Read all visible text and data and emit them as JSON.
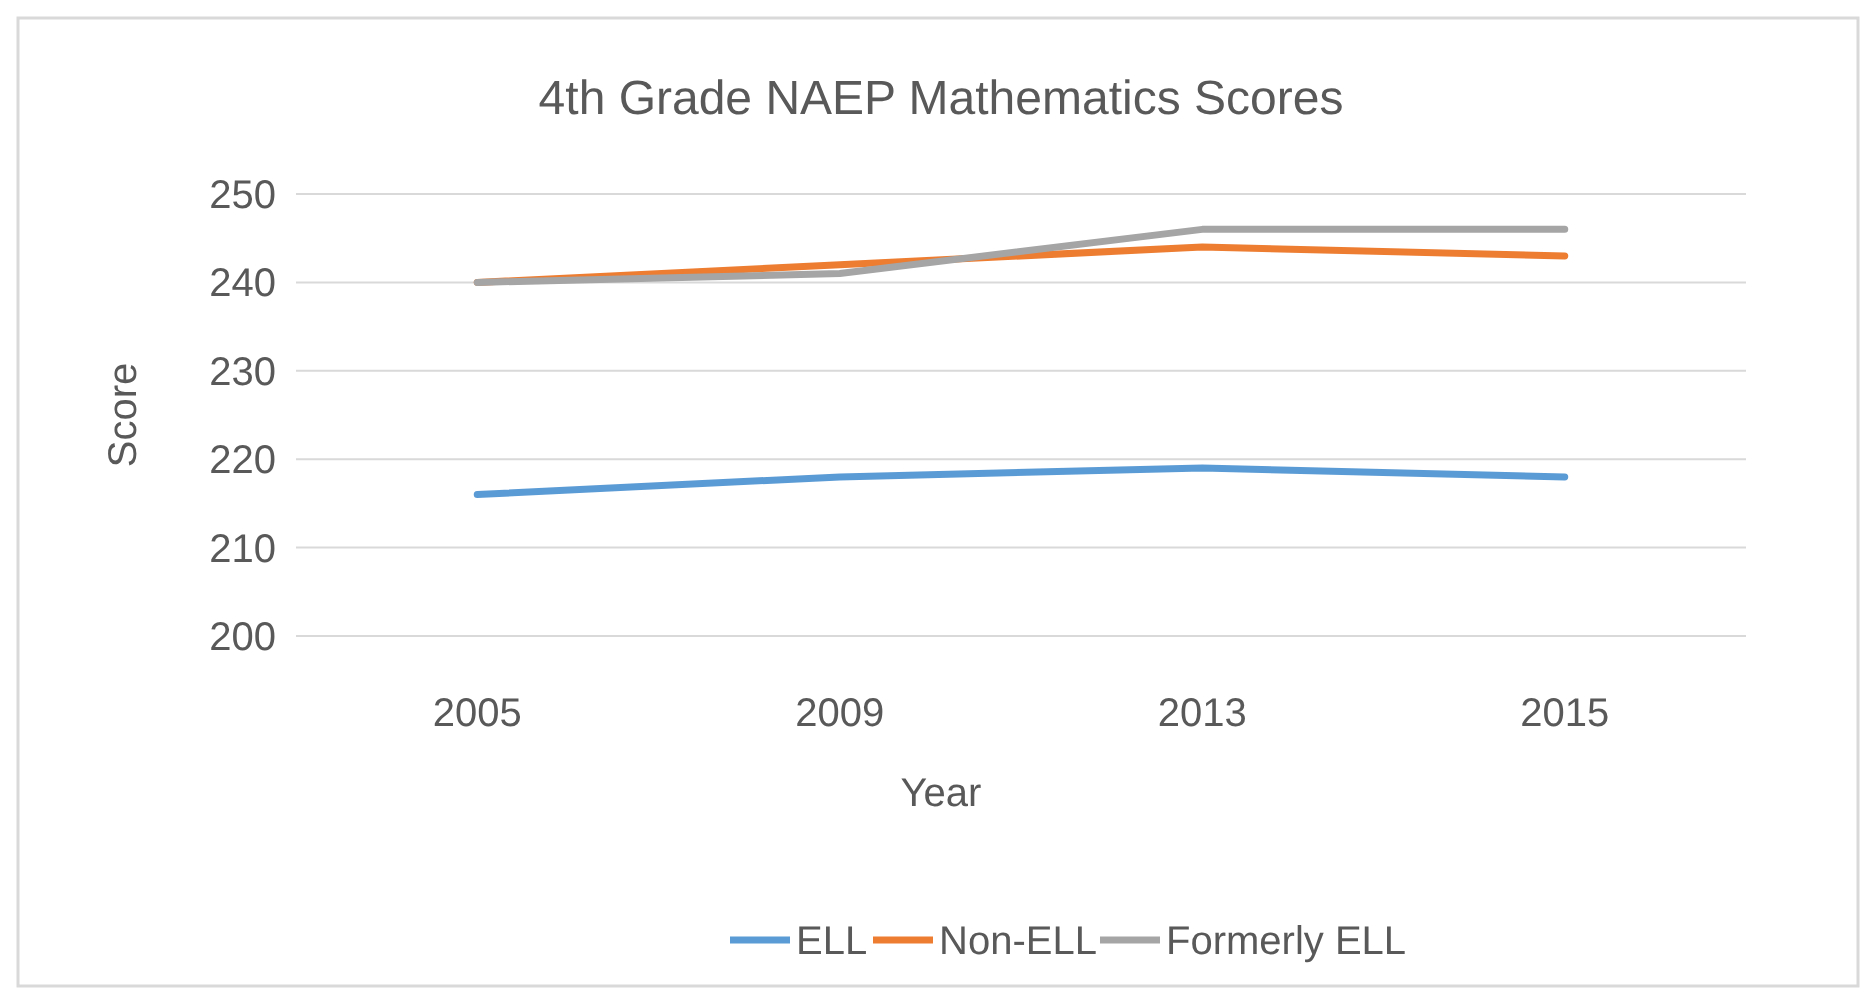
{
  "chart_data": {
    "type": "line",
    "title": "4th Grade NAEP Mathematics Scores",
    "xlabel": "Year",
    "ylabel": "Score",
    "categories": [
      "2005",
      "2009",
      "2013",
      "2015"
    ],
    "series": [
      {
        "name": "ELL",
        "color": "#5b9bd5",
        "values": [
          216,
          218,
          219,
          218
        ]
      },
      {
        "name": "Non-ELL",
        "color": "#ed7d31",
        "values": [
          240,
          242,
          244,
          243
        ]
      },
      {
        "name": "Formerly ELL",
        "color": "#a5a5a5",
        "values": [
          240,
          241,
          246,
          246
        ]
      }
    ],
    "ylim": [
      200,
      250
    ],
    "yticks": [
      200,
      210,
      220,
      230,
      240,
      250
    ],
    "grid": "y",
    "legend": "bottom",
    "marker": "none",
    "line_style": "solid"
  }
}
